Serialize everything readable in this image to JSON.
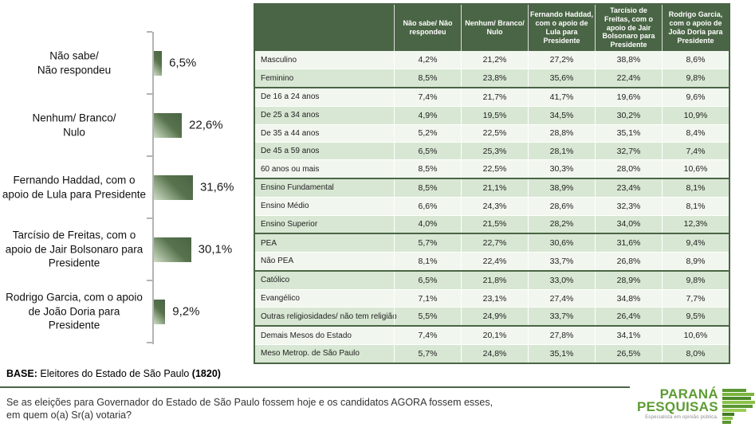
{
  "chart_data": {
    "type": "bar",
    "orientation": "horizontal",
    "title": "",
    "xlabel": "",
    "ylabel": "",
    "categories": [
      "Não sabe/ Não respondeu",
      "Nenhum/ Branco/ Nulo",
      "Fernando Haddad, com o apoio de Lula para Presidente",
      "Tarcísio de Freitas, com o apoio de Jair Bolsonaro para Presidente",
      "Rodrigo Garcia, com o apoio de João Doria para Presidente"
    ],
    "category_lines": [
      [
        "Não sabe/",
        "Não respondeu"
      ],
      [
        "Nenhum/ Branco/",
        "Nulo"
      ],
      [
        "Fernando Haddad, com o",
        "apoio de Lula para Presidente"
      ],
      [
        "Tarcísio de Freitas, com o",
        "apoio de Jair Bolsonaro para",
        "Presidente"
      ],
      [
        "Rodrigo Garcia, com o apoio",
        "de João Doria para",
        "Presidente"
      ]
    ],
    "values": [
      6.5,
      22.6,
      31.6,
      30.1,
      9.2
    ],
    "value_labels": [
      "6,5%",
      "22,6%",
      "31,6%",
      "30,1%",
      "9,2%"
    ],
    "bar_color_dark": "#4a6545",
    "bar_color_light": "#cfdec6",
    "axis_color": "#b3b3b3",
    "grid": false,
    "legend": false
  },
  "table": {
    "columns": [
      "Não sabe/ Não respondeu",
      "Nenhum/ Branco/ Nulo",
      "Fernando Haddad, com o apoio de Lula para Presidente",
      "Tarcísio de Freitas, com o apoio de Jair Bolsonaro para Presidente",
      "Rodrigo Garcia, com o apoio de João Doria para Presidente"
    ],
    "header_bg": "#4a6545",
    "row_shaded_bg": "#d8e7d3",
    "row_plain_bg": "#f1f6ef",
    "groups": [
      {
        "name": "sexo",
        "rows": [
          {
            "label": "Masculino",
            "shaded": false,
            "values": [
              "4,2%",
              "21,2%",
              "27,2%",
              "38,8%",
              "8,6%"
            ]
          },
          {
            "label": "Feminino",
            "shaded": true,
            "values": [
              "8,5%",
              "23,8%",
              "35,6%",
              "22,4%",
              "9,8%"
            ]
          }
        ]
      },
      {
        "name": "idade",
        "rows": [
          {
            "label": "De 16 a 24 anos",
            "shaded": false,
            "values": [
              "7,4%",
              "21,7%",
              "41,7%",
              "19,6%",
              "9,6%"
            ]
          },
          {
            "label": "De 25 a 34 anos",
            "shaded": true,
            "values": [
              "4,9%",
              "19,5%",
              "34,5%",
              "30,2%",
              "10,9%"
            ]
          },
          {
            "label": "De 35 a 44 anos",
            "shaded": false,
            "values": [
              "5,2%",
              "22,5%",
              "28,8%",
              "35,1%",
              "8,4%"
            ]
          },
          {
            "label": "De 45 a 59 anos",
            "shaded": true,
            "values": [
              "6,5%",
              "25,3%",
              "28,1%",
              "32,7%",
              "7,4%"
            ]
          },
          {
            "label": "60 anos ou mais",
            "shaded": false,
            "values": [
              "8,5%",
              "22,5%",
              "30,3%",
              "28,0%",
              "10,6%"
            ]
          }
        ]
      },
      {
        "name": "escolaridade",
        "rows": [
          {
            "label": "Ensino Fundamental",
            "shaded": true,
            "values": [
              "8,5%",
              "21,1%",
              "38,9%",
              "23,4%",
              "8,1%"
            ]
          },
          {
            "label": "Ensino Médio",
            "shaded": false,
            "values": [
              "6,6%",
              "24,3%",
              "28,6%",
              "32,3%",
              "8,1%"
            ]
          },
          {
            "label": "Ensino Superior",
            "shaded": true,
            "values": [
              "4,0%",
              "21,5%",
              "28,2%",
              "34,0%",
              "12,3%"
            ]
          }
        ]
      },
      {
        "name": "pea",
        "rows": [
          {
            "label": "PEA",
            "shaded": true,
            "values": [
              "5,7%",
              "22,7%",
              "30,6%",
              "31,6%",
              "9,4%"
            ]
          },
          {
            "label": "Não PEA",
            "shaded": false,
            "values": [
              "8,1%",
              "22,4%",
              "33,7%",
              "26,8%",
              "8,9%"
            ]
          }
        ]
      },
      {
        "name": "religiao",
        "rows": [
          {
            "label": "Católico",
            "shaded": true,
            "values": [
              "6,5%",
              "21,8%",
              "33,0%",
              "28,9%",
              "9,8%"
            ]
          },
          {
            "label": "Evangélico",
            "shaded": false,
            "values": [
              "7,1%",
              "23,1%",
              "27,4%",
              "34,8%",
              "7,7%"
            ]
          },
          {
            "label": "Outras religiosidades/ não tem religião",
            "shaded": true,
            "values": [
              "5,5%",
              "24,9%",
              "33,7%",
              "26,4%",
              "9,5%"
            ]
          }
        ]
      },
      {
        "name": "regiao",
        "rows": [
          {
            "label": "Demais Mesos do Estado",
            "shaded": false,
            "values": [
              "7,4%",
              "20,1%",
              "27,8%",
              "34,1%",
              "10,6%"
            ]
          },
          {
            "label": "Meso Metrop. de São Paulo",
            "shaded": true,
            "values": [
              "5,7%",
              "24,8%",
              "35,1%",
              "26,5%",
              "8,0%"
            ]
          }
        ]
      }
    ]
  },
  "footer": {
    "base_label": "BASE:",
    "base_text": " Eleitores do Estado de São Paulo ",
    "base_count": "(1820)",
    "question_line1": "Se as eleições para Governador do Estado de São Paulo fossem hoje e os candidatos AGORA fossem esses,",
    "question_line2": "em quem o(a) Sr(a) votaria?"
  },
  "logo": {
    "line1": "PARANÁ",
    "line2": "PESQUISAS",
    "tagline": "Especialista em opinião pública.",
    "brand_green": "#5d9c33"
  }
}
